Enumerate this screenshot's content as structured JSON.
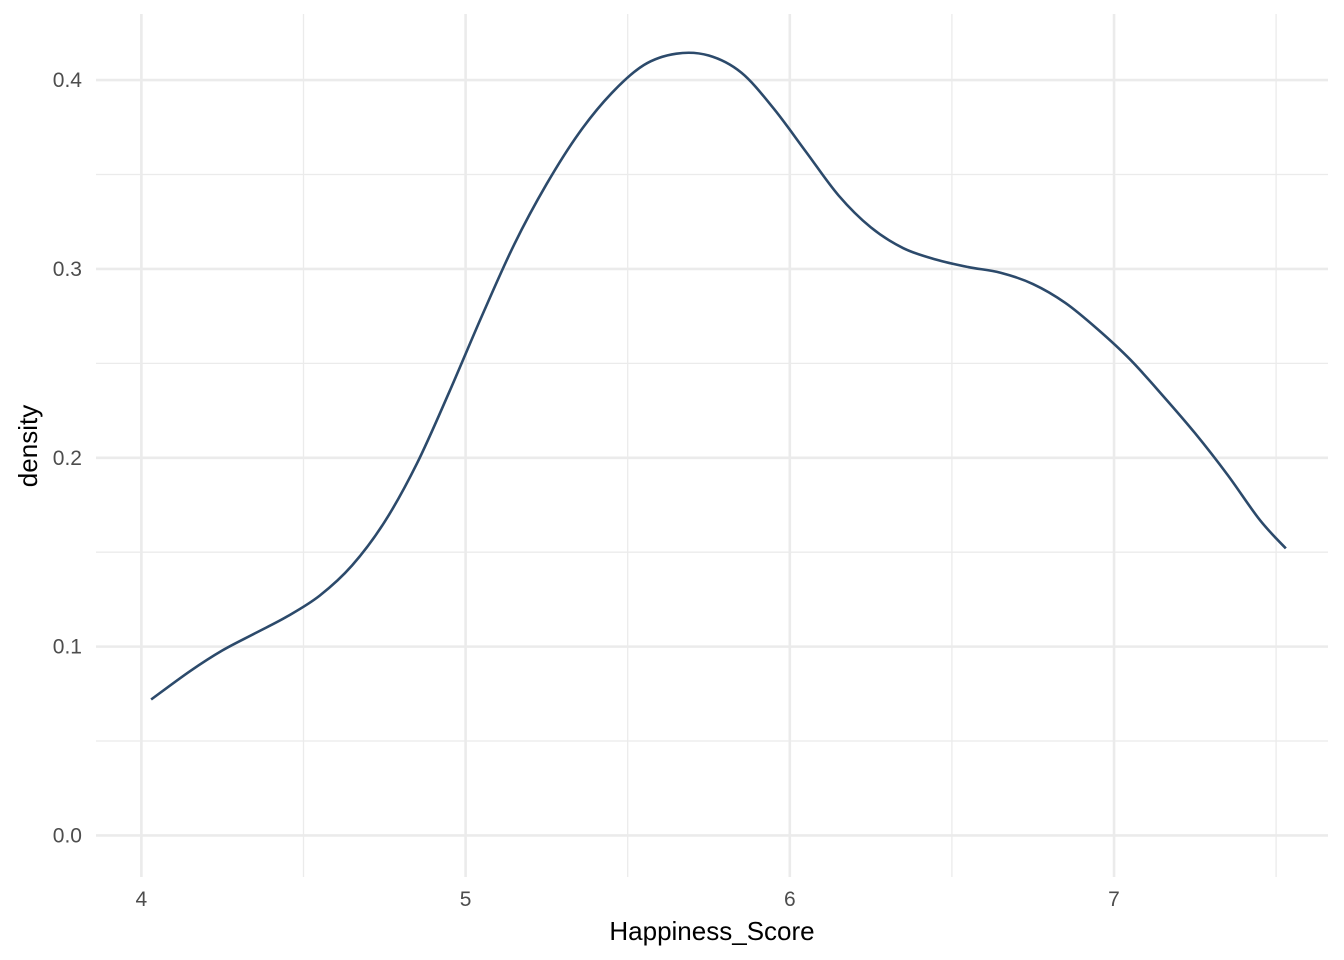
{
  "chart_data": {
    "type": "line",
    "title": "",
    "xlabel": "Happiness_Score",
    "ylabel": "density",
    "xlim": [
      3.86,
      7.66
    ],
    "ylim": [
      -0.022,
      0.435
    ],
    "x_ticks": [
      4,
      5,
      6,
      7
    ],
    "x_tick_labels": [
      "4",
      "5",
      "6",
      "7"
    ],
    "x_minor_ticks": [
      4.5,
      5.5,
      6.5,
      7.5
    ],
    "y_ticks": [
      0.0,
      0.1,
      0.2,
      0.3,
      0.4
    ],
    "y_tick_labels": [
      "0.0",
      "0.1",
      "0.2",
      "0.3",
      "0.4"
    ],
    "y_minor_ticks": [
      0.05,
      0.15,
      0.25,
      0.35
    ],
    "grid": true,
    "legend": "none",
    "colors": {
      "line": "#2c4a6b",
      "grid": "#ebebeb",
      "background": "#ffffff"
    },
    "series": [
      {
        "x": [
          4.03,
          4.15,
          4.25,
          4.35,
          4.45,
          4.55,
          4.65,
          4.75,
          4.85,
          4.95,
          5.05,
          5.15,
          5.25,
          5.35,
          5.45,
          5.55,
          5.65,
          5.75,
          5.85,
          5.95,
          6.05,
          6.15,
          6.25,
          6.35,
          6.45,
          6.55,
          6.65,
          6.75,
          6.85,
          6.95,
          7.05,
          7.15,
          7.25,
          7.35,
          7.45,
          7.53
        ],
        "y": [
          0.072,
          0.087,
          0.098,
          0.107,
          0.116,
          0.127,
          0.143,
          0.166,
          0.197,
          0.235,
          0.275,
          0.313,
          0.345,
          0.372,
          0.393,
          0.408,
          0.414,
          0.413,
          0.404,
          0.385,
          0.362,
          0.339,
          0.322,
          0.311,
          0.305,
          0.301,
          0.298,
          0.292,
          0.282,
          0.268,
          0.252,
          0.233,
          0.213,
          0.191,
          0.167,
          0.152
        ]
      }
    ]
  }
}
